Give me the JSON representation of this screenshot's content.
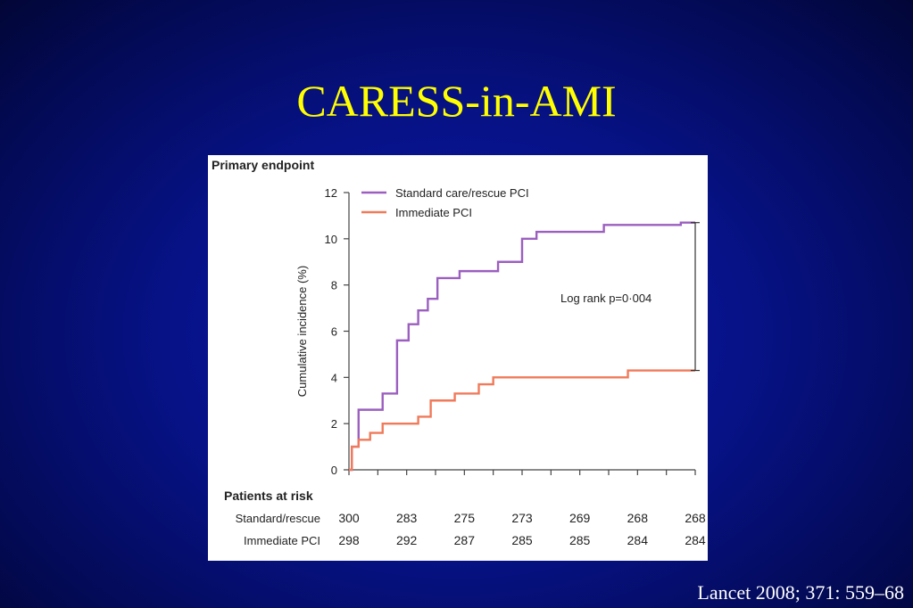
{
  "slide": {
    "title": "CARESS-in-AMI",
    "citation": "Lancet 2008; 371: 559–68"
  },
  "chart_data": {
    "type": "line",
    "title": "Primary endpoint",
    "xlabel": "",
    "ylabel": "Cumulative incidence (%)",
    "ylim": [
      0,
      12
    ],
    "yticks": [
      0,
      2,
      4,
      6,
      8,
      10,
      12
    ],
    "xlim": [
      0,
      360
    ],
    "legend_position": "top-left",
    "annotation": "Log rank p=0·004",
    "series": [
      {
        "name": "Standard care/rescue PCI",
        "color": "#9b5fbf",
        "step": [
          [
            0,
            0
          ],
          [
            3,
            1
          ],
          [
            10,
            2.6
          ],
          [
            35,
            3.3
          ],
          [
            50,
            5.6
          ],
          [
            62,
            6.3
          ],
          [
            72,
            6.9
          ],
          [
            82,
            7.4
          ],
          [
            92,
            8.3
          ],
          [
            115,
            8.6
          ],
          [
            155,
            9
          ],
          [
            180,
            10
          ],
          [
            195,
            10.3
          ],
          [
            265,
            10.6
          ],
          [
            345,
            10.7
          ],
          [
            360,
            10.7
          ]
        ]
      },
      {
        "name": "Immediate PCI",
        "color": "#f07a5a",
        "step": [
          [
            0,
            0
          ],
          [
            3,
            1
          ],
          [
            10,
            1.3
          ],
          [
            22,
            1.6
          ],
          [
            35,
            2
          ],
          [
            72,
            2.3
          ],
          [
            85,
            3
          ],
          [
            110,
            3.3
          ],
          [
            135,
            3.7
          ],
          [
            150,
            4
          ],
          [
            290,
            4.3
          ],
          [
            360,
            4.3
          ]
        ]
      }
    ],
    "risk_table": {
      "header": "Patients at risk",
      "rows": [
        {
          "label": "Standard/rescue",
          "values": [
            "300",
            "283",
            "275",
            "273",
            "269",
            "268",
            "268"
          ]
        },
        {
          "label": "Immediate PCI",
          "values": [
            "298",
            "292",
            "287",
            "285",
            "285",
            "284",
            "284"
          ]
        }
      ]
    }
  }
}
